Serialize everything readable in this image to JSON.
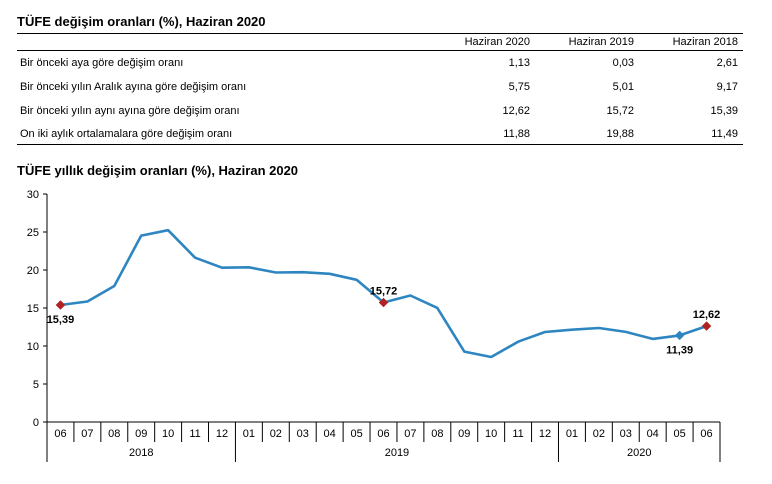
{
  "table": {
    "title": "TÜFE değişim oranları (%), Haziran 2020",
    "columns": [
      "Haziran 2020",
      "Haziran 2019",
      "Haziran 2018"
    ],
    "rows": [
      {
        "label": "Bir önceki aya göre değişim oranı",
        "values": [
          "1,13",
          "0,03",
          "2,61"
        ]
      },
      {
        "label": "Bir önceki yılın Aralık ayına göre değişim oranı",
        "values": [
          "5,75",
          "5,01",
          "9,17"
        ]
      },
      {
        "label": "Bir önceki yılın aynı ayına göre değişim oranı",
        "values": [
          "12,62",
          "15,72",
          "15,39"
        ]
      },
      {
        "label": "On iki aylık ortalamalara göre değişim oranı",
        "values": [
          "11,88",
          "19,88",
          "11,49"
        ]
      }
    ]
  },
  "chart_data": {
    "type": "line",
    "title": "TÜFE yıllık değişim oranları (%), Haziran 2020",
    "xlabel": "",
    "ylabel": "",
    "ylim": [
      0,
      30
    ],
    "yticks": [
      0,
      5,
      10,
      15,
      20,
      25,
      30
    ],
    "grid": false,
    "categories": [
      "06",
      "07",
      "08",
      "09",
      "10",
      "11",
      "12",
      "01",
      "02",
      "03",
      "04",
      "05",
      "06",
      "07",
      "08",
      "09",
      "10",
      "11",
      "12",
      "01",
      "02",
      "03",
      "04",
      "05",
      "06"
    ],
    "groups": [
      {
        "label": "2018",
        "start": 0,
        "end": 6
      },
      {
        "label": "2019",
        "start": 7,
        "end": 18
      },
      {
        "label": "2020",
        "start": 19,
        "end": 24
      }
    ],
    "series": [
      {
        "values": [
          15.39,
          15.85,
          17.9,
          24.52,
          25.24,
          21.62,
          20.3,
          20.35,
          19.67,
          19.71,
          19.5,
          18.71,
          15.72,
          16.65,
          15.01,
          9.26,
          8.55,
          10.56,
          11.84,
          12.15,
          12.37,
          11.86,
          10.94,
          11.39,
          12.62
        ],
        "color": "#2e86c1"
      }
    ],
    "markers": [
      {
        "index": 0,
        "label": "15,39",
        "color": "#b22222",
        "shape": "diamond",
        "label_pos": "below"
      },
      {
        "index": 12,
        "label": "15,72",
        "color": "#b22222",
        "shape": "diamond",
        "label_pos": "above"
      },
      {
        "index": 23,
        "label": "11,39",
        "color": "#2e86c1",
        "shape": "diamond",
        "label_pos": "below"
      },
      {
        "index": 24,
        "label": "12,62",
        "color": "#b22222",
        "shape": "diamond",
        "label_pos": "above"
      }
    ]
  }
}
